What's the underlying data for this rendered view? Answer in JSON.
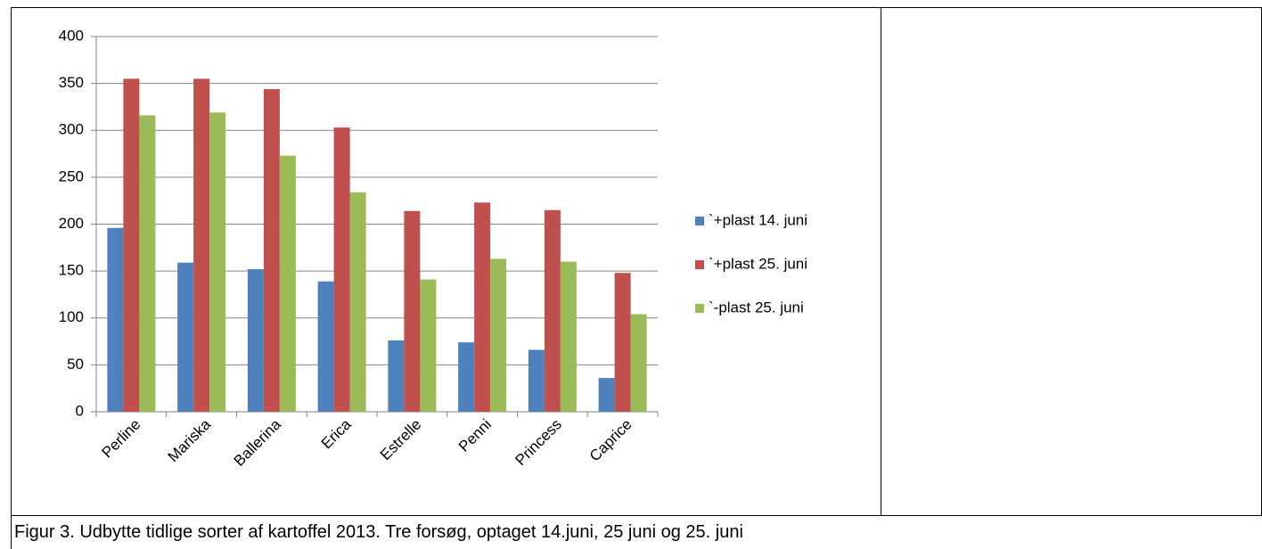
{
  "chart_data": {
    "type": "bar",
    "categories": [
      "Perline",
      "Mariska",
      "Ballerina",
      "Erica",
      "Estrelle",
      "Penni",
      "Princess",
      "Caprice"
    ],
    "series": [
      {
        "name": "`+plast 14. juni",
        "color": "#4f81bd",
        "values": [
          196,
          159,
          152,
          139,
          76,
          74,
          66,
          36
        ]
      },
      {
        "name": "`+plast 25. juni",
        "color": "#c0504d",
        "values": [
          355,
          355,
          344,
          303,
          214,
          223,
          215,
          148
        ]
      },
      {
        "name": "`-plast 25. juni",
        "color": "#9bbb59",
        "values": [
          316,
          319,
          273,
          234,
          141,
          163,
          160,
          104
        ]
      }
    ],
    "ylim": [
      0,
      400
    ],
    "yticks": [
      0,
      50,
      100,
      150,
      200,
      250,
      300,
      350,
      400
    ],
    "grid": true,
    "legend": "right"
  },
  "caption": "Figur 3. Udbytte tidlige sorter af kartoffel 2013. Tre forsøg, optaget 14.juni, 25 juni og 25. juni"
}
